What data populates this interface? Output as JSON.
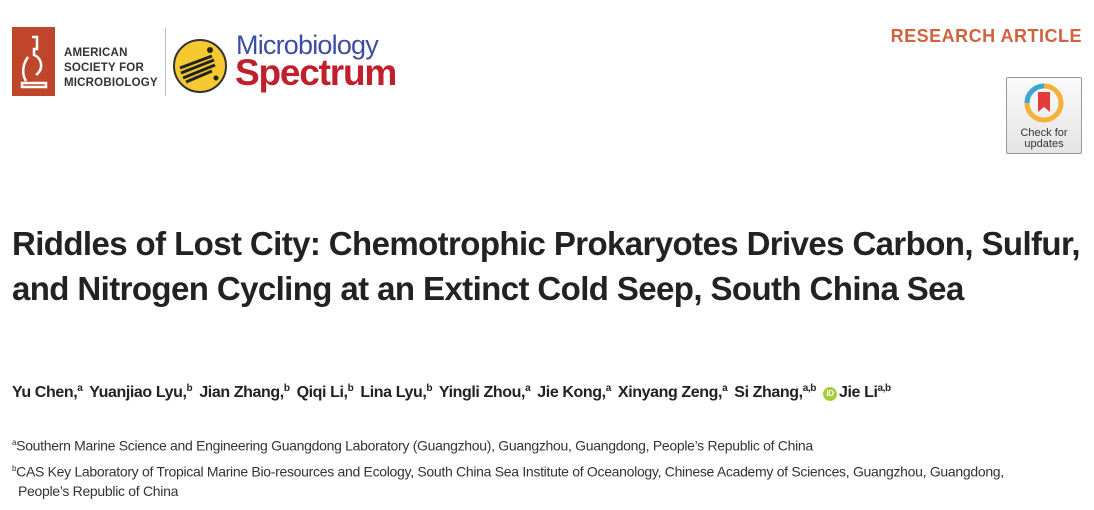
{
  "header": {
    "society_logo_text": [
      "AMERICAN",
      "SOCIETY FOR",
      "MICROBIOLOGY"
    ],
    "journal_name_top": "Microbiology",
    "journal_name_bottom": "Spectrum",
    "article_type": "RESEARCH ARTICLE",
    "check_for_updates": [
      "Check for",
      "updates"
    ],
    "colors": {
      "society_red": "#c0462b",
      "journal_blue": "#3b4ea3",
      "journal_red": "#c0202c",
      "article_type": "#d0623f"
    }
  },
  "title": "Riddles of Lost City: Chemotrophic Prokaryotes Drives Carbon, Sulfur, and Nitrogen Cycling at an Extinct Cold Seep, South China Sea",
  "authors": [
    {
      "name": "Yu Chen,",
      "aff": "a"
    },
    {
      "name": "Yuanjiao Lyu,",
      "aff": "b"
    },
    {
      "name": "Jian Zhang,",
      "aff": "b"
    },
    {
      "name": "Qiqi Li,",
      "aff": "b"
    },
    {
      "name": "Lina Lyu,",
      "aff": "b"
    },
    {
      "name": "Yingli Zhou,",
      "aff": "a"
    },
    {
      "name": "Jie Kong,",
      "aff": "a"
    },
    {
      "name": "Xinyang Zeng,",
      "aff": "a"
    },
    {
      "name": "Si Zhang,",
      "aff": "a,b"
    },
    {
      "name": "Jie Li",
      "aff": "a,b",
      "orcid": "iD"
    }
  ],
  "affiliations": [
    {
      "label": "a",
      "text": "Southern Marine Science and Engineering Guangdong Laboratory (Guangzhou), Guangzhou, Guangdong, People’s Republic of China"
    },
    {
      "label": "b",
      "text": "CAS Key Laboratory of Tropical Marine Bio-resources and Ecology, South China Sea Institute of Oceanology, Chinese Academy of Sciences, Guangzhou, Guangdong,",
      "text2": "People’s Republic of China"
    }
  ]
}
